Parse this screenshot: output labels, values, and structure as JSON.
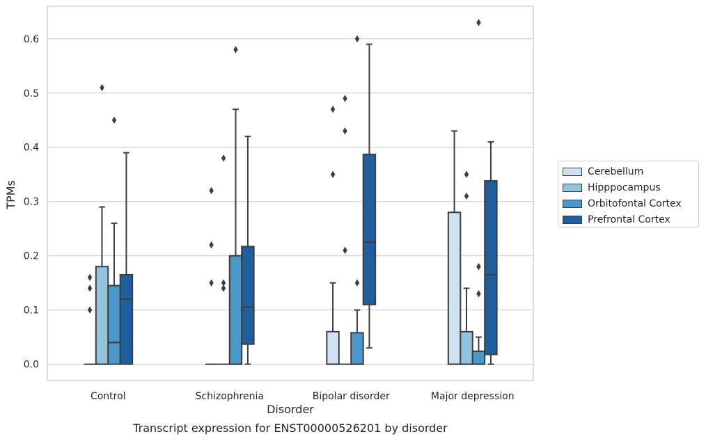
{
  "chart_data": {
    "type": "box",
    "xlabel": "Disorder",
    "ylabel": "TPMs",
    "ylim": [
      -0.03,
      0.66
    ],
    "yticks": [
      0.0,
      0.1,
      0.2,
      0.3,
      0.4,
      0.5,
      0.6
    ],
    "ytick_labels": [
      "0.0",
      "0.1",
      "0.2",
      "0.3",
      "0.4",
      "0.5",
      "0.6"
    ],
    "grid": true,
    "legend_position": "center-right outside",
    "categories": [
      "Control",
      "Schizophrenia",
      "Bipolar disorder",
      "Major depression"
    ],
    "series": [
      {
        "name": "Cerebellum",
        "color": "#cfe1f2",
        "boxes": [
          {
            "min": 0.0,
            "q1": 0.0,
            "median": 0.0,
            "q3": 0.0,
            "max": 0.0,
            "outliers": [
              0.1,
              0.14,
              0.16
            ]
          },
          {
            "min": 0.0,
            "q1": 0.0,
            "median": 0.0,
            "q3": 0.0,
            "max": 0.0,
            "outliers": [
              0.15,
              0.22,
              0.32
            ]
          },
          {
            "min": 0.0,
            "q1": 0.0,
            "median": 0.0,
            "q3": 0.06,
            "max": 0.15,
            "outliers": [
              0.35,
              0.47
            ]
          },
          {
            "min": 0.0,
            "q1": 0.0,
            "median": 0.0,
            "q3": 0.28,
            "max": 0.43,
            "outliers": []
          }
        ]
      },
      {
        "name": "Hipppocampus",
        "color": "#93c4de",
        "boxes": [
          {
            "min": 0.0,
            "q1": 0.0,
            "median": 0.0,
            "q3": 0.18,
            "max": 0.29,
            "outliers": [
              0.51
            ]
          },
          {
            "min": 0.0,
            "q1": 0.0,
            "median": 0.0,
            "q3": 0.0,
            "max": 0.0,
            "outliers": [
              0.14,
              0.15,
              0.38
            ]
          },
          {
            "min": 0.0,
            "q1": 0.0,
            "median": 0.0,
            "q3": 0.0,
            "max": 0.0,
            "outliers": [
              0.21,
              0.43,
              0.49
            ]
          },
          {
            "min": 0.0,
            "q1": 0.0,
            "median": 0.0,
            "q3": 0.06,
            "max": 0.14,
            "outliers": [
              0.31,
              0.35
            ]
          }
        ]
      },
      {
        "name": "Orbitofontal Cortex",
        "color": "#4a98c9",
        "boxes": [
          {
            "min": 0.0,
            "q1": 0.0,
            "median": 0.04,
            "q3": 0.145,
            "max": 0.26,
            "outliers": [
              0.45
            ]
          },
          {
            "min": 0.0,
            "q1": 0.0,
            "median": 0.0,
            "q3": 0.2,
            "max": 0.47,
            "outliers": [
              0.58
            ]
          },
          {
            "min": 0.0,
            "q1": 0.0,
            "median": 0.0,
            "q3": 0.058,
            "max": 0.1,
            "outliers": [
              0.15,
              0.6
            ]
          },
          {
            "min": 0.0,
            "q1": 0.0,
            "median": 0.0,
            "q3": 0.024,
            "max": 0.05,
            "outliers": [
              0.13,
              0.18,
              0.63
            ]
          }
        ]
      },
      {
        "name": "Prefrontal Cortex",
        "color": "#1f5f9f",
        "boxes": [
          {
            "min": 0.0,
            "q1": 0.0,
            "median": 0.12,
            "q3": 0.165,
            "max": 0.39,
            "outliers": []
          },
          {
            "min": 0.0,
            "q1": 0.037,
            "median": 0.105,
            "q3": 0.217,
            "max": 0.42,
            "outliers": []
          },
          {
            "min": 0.03,
            "q1": 0.11,
            "median": 0.225,
            "q3": 0.387,
            "max": 0.59,
            "outliers": []
          },
          {
            "min": 0.0,
            "q1": 0.018,
            "median": 0.165,
            "q3": 0.338,
            "max": 0.41,
            "outliers": []
          }
        ]
      }
    ]
  },
  "caption": "Transcript expression for ENST00000526201 by disorder"
}
